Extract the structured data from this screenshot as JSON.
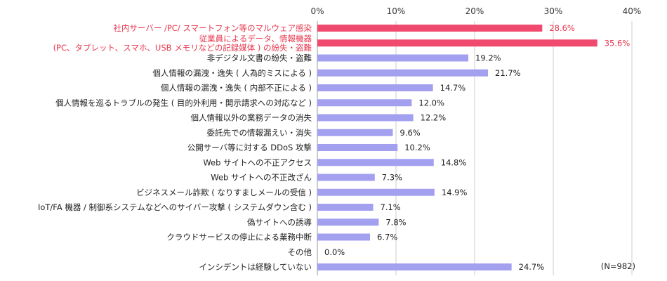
{
  "chart_data": {
    "type": "bar",
    "orientation": "horizontal",
    "xlim": [
      0,
      40
    ],
    "x_ticks": [
      "0%",
      "10%",
      "20%",
      "30%",
      "40%"
    ],
    "grid": true,
    "note": "(N=982)",
    "colors": {
      "default": "#a3a0f0",
      "highlight": "#f04a6e",
      "highlight_text": "#e8384f",
      "grid": "#cccccc"
    },
    "categories": [
      {
        "label_lines": [
          "社内サーバー /PC/ スマートフォン等のマルウェア感染"
        ],
        "value": 28.6,
        "value_label": "28.6%",
        "highlight": true
      },
      {
        "label_lines": [
          "従業員によるデータ、情報機器",
          "(PC、タブレット、スマホ、USB メモリなどの記録媒体 ) の紛失・盗難"
        ],
        "value": 35.6,
        "value_label": "35.6%",
        "highlight": true
      },
      {
        "label_lines": [
          "非デジタル文書の紛失・盗難"
        ],
        "value": 19.2,
        "value_label": "19.2%",
        "highlight": false
      },
      {
        "label_lines": [
          "個人情報の漏洩・逸失 ( 人為的ミスによる )"
        ],
        "value": 21.7,
        "value_label": "21.7%",
        "highlight": false
      },
      {
        "label_lines": [
          "個人情報の漏洩・逸失 ( 内部不正による )"
        ],
        "value": 14.7,
        "value_label": "14.7%",
        "highlight": false
      },
      {
        "label_lines": [
          "個人情報を巡るトラブルの発生 ( 目的外利用・開示請求への対応など )"
        ],
        "value": 12.0,
        "value_label": "12.0%",
        "highlight": false
      },
      {
        "label_lines": [
          "個人情報以外の業務データの消失"
        ],
        "value": 12.2,
        "value_label": "12.2%",
        "highlight": false
      },
      {
        "label_lines": [
          "委託先での情報漏えい・消失"
        ],
        "value": 9.6,
        "value_label": "9.6%",
        "highlight": false
      },
      {
        "label_lines": [
          "公開サーバ等に対する DDoS 攻撃"
        ],
        "value": 10.2,
        "value_label": "10.2%",
        "highlight": false
      },
      {
        "label_lines": [
          "Web サイトへの不正アクセス"
        ],
        "value": 14.8,
        "value_label": "14.8%",
        "highlight": false
      },
      {
        "label_lines": [
          "Web サイトへの不正改ざん"
        ],
        "value": 7.3,
        "value_label": "7.3%",
        "highlight": false
      },
      {
        "label_lines": [
          "ビジネスメール詐欺 ( なりすましメールの受信 )"
        ],
        "value": 14.9,
        "value_label": "14.9%",
        "highlight": false
      },
      {
        "label_lines": [
          "IoT/FA 機器 / 制御系システムなどへのサイバー攻撃 ( システムダウン含む )"
        ],
        "value": 7.1,
        "value_label": "7.1%",
        "highlight": false
      },
      {
        "label_lines": [
          "偽サイトへの誘導"
        ],
        "value": 7.8,
        "value_label": "7.8%",
        "highlight": false
      },
      {
        "label_lines": [
          "クラウドサービスの停止による業務中断"
        ],
        "value": 6.7,
        "value_label": "6.7%",
        "highlight": false
      },
      {
        "label_lines": [
          "その他"
        ],
        "value": 0.0,
        "value_label": "0.0%",
        "highlight": false
      },
      {
        "label_lines": [
          "インシデントは経験していない"
        ],
        "value": 24.7,
        "value_label": "24.7%",
        "highlight": false
      }
    ]
  }
}
